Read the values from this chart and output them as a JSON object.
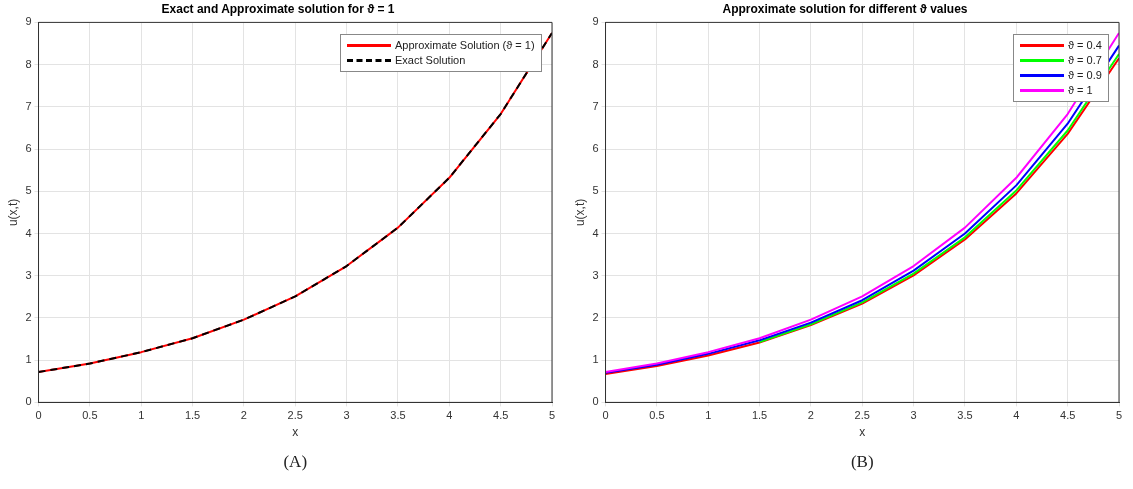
{
  "chart_data": [
    {
      "type": "line",
      "title": "Exact and Approximate solution for ϑ = 1",
      "xlabel": "x",
      "ylabel": "u(x,t)",
      "x": [
        0,
        0.5,
        1,
        1.5,
        2,
        2.5,
        3,
        3.5,
        4,
        4.5,
        5
      ],
      "xlim": [
        0,
        5
      ],
      "xticks": [
        0,
        0.5,
        1,
        1.5,
        2,
        2.5,
        3,
        3.5,
        4,
        4.5,
        5
      ],
      "ylim": [
        0,
        9
      ],
      "yticks": [
        0,
        1,
        2,
        3,
        4,
        5,
        6,
        7,
        8,
        9
      ],
      "grid": true,
      "legend": "top right",
      "marker": "none",
      "annotations": [
        "(A)"
      ],
      "series": [
        {
          "name": "Approximate Solution (ϑ = 1)",
          "color": "#ff0000",
          "line_style": "solid",
          "values": [
            0.72,
            0.92,
            1.19,
            1.52,
            1.96,
            2.51,
            3.23,
            4.14,
            5.32,
            6.83,
            8.75
          ]
        },
        {
          "name": "Exact Solution",
          "color": "#000000",
          "line_style": "dashed",
          "values": [
            0.72,
            0.92,
            1.19,
            1.52,
            1.96,
            2.51,
            3.23,
            4.14,
            5.32,
            6.83,
            8.75
          ]
        }
      ]
    },
    {
      "type": "line",
      "title": "Approximate solution for different ϑ values",
      "xlabel": "x",
      "ylabel": "u(x,t)",
      "x": [
        0,
        0.5,
        1,
        1.5,
        2,
        2.5,
        3,
        3.5,
        4,
        4.5,
        5
      ],
      "xlim": [
        0,
        5
      ],
      "xticks": [
        0,
        0.5,
        1,
        1.5,
        2,
        2.5,
        3,
        3.5,
        4,
        4.5,
        5
      ],
      "ylim": [
        0,
        9
      ],
      "yticks": [
        0,
        1,
        2,
        3,
        4,
        5,
        6,
        7,
        8,
        9
      ],
      "grid": true,
      "legend": "top right",
      "marker": "none",
      "annotations": [
        "(B)"
      ],
      "series": [
        {
          "name": "ϑ = 0.4",
          "color": "#ff0000",
          "values": [
            0.67,
            0.86,
            1.11,
            1.42,
            1.83,
            2.34,
            3.01,
            3.86,
            4.95,
            6.36,
            8.15
          ]
        },
        {
          "name": "ϑ = 0.7",
          "color": "#00ff00",
          "values": [
            null,
            null,
            null,
            1.43,
            1.85,
            2.37,
            3.05,
            3.91,
            5.02,
            6.44,
            8.25
          ]
        },
        {
          "name": "ϑ = 0.9",
          "color": "#0000ff",
          "values": [
            0.7,
            0.89,
            1.15,
            1.47,
            1.89,
            2.42,
            3.12,
            4.0,
            5.14,
            6.6,
            8.45
          ]
        },
        {
          "name": "ϑ = 1",
          "color": "#ff00ff",
          "values": [
            0.72,
            0.92,
            1.19,
            1.52,
            1.96,
            2.51,
            3.23,
            4.14,
            5.32,
            6.83,
            8.75
          ]
        }
      ]
    }
  ]
}
